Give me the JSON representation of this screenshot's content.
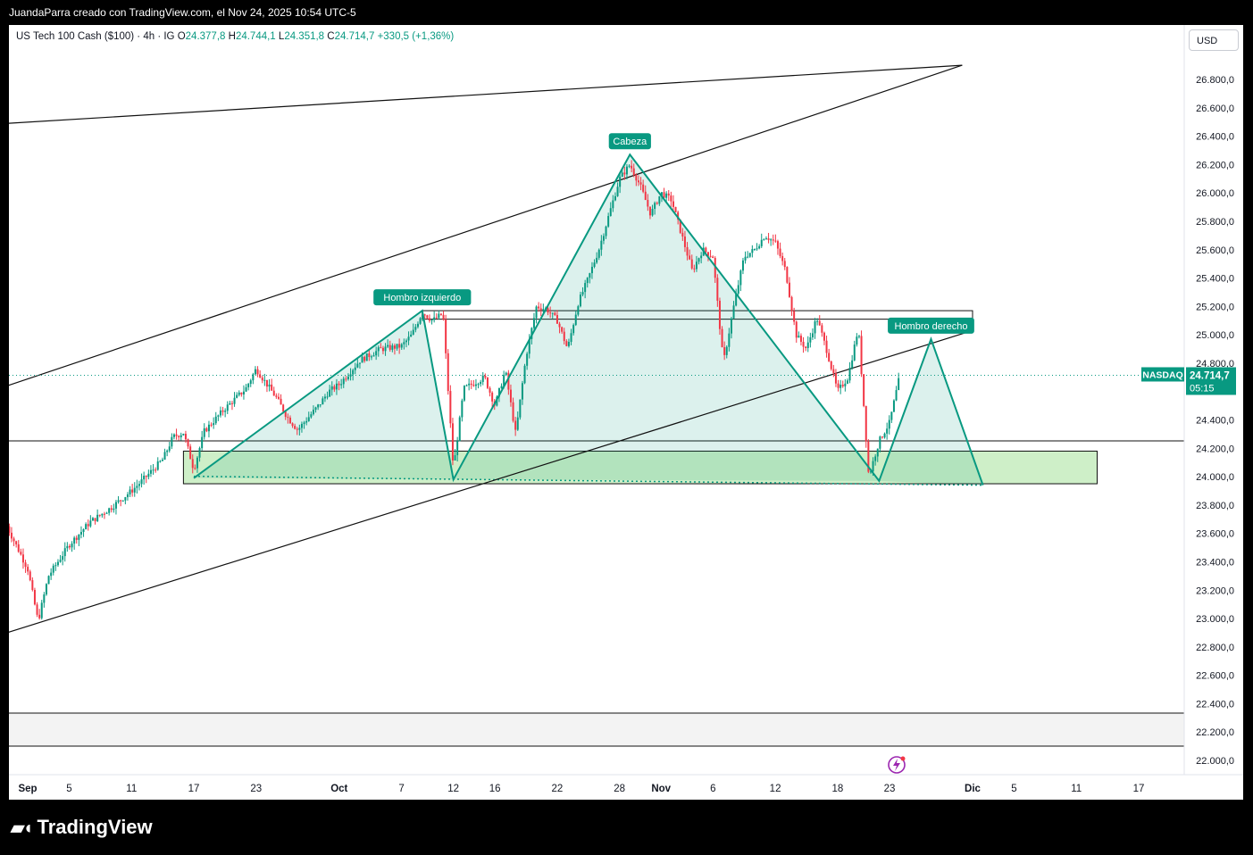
{
  "caption": "JuandaParra creado con TradingView.com, el Nov 24, 2025 10:54 UTC-5",
  "legend": {
    "symbol": "US Tech 100 Cash ($100) · 4h · IG",
    "o_label": "O",
    "o": "24.377,8",
    "h_label": "H",
    "h": "24.744,1",
    "l_label": "L",
    "l": "24.351,8",
    "c_label": "C",
    "c": "24.714,7",
    "change": "+330,5 (+1,36%)"
  },
  "currency": "USD",
  "price_tag": {
    "label": "NASDAQ",
    "value": "24.714,7",
    "countdown": "05:15"
  },
  "logo": "TradingView",
  "colors": {
    "up": "#089981",
    "down": "#f23645",
    "pattern": "#089981",
    "zone": "#b9e6b0",
    "price_tag": "#089981"
  },
  "chart_data": {
    "type": "line",
    "title": "US Tech 100 Cash ($100) · 4h · IG",
    "ylim": [
      21900,
      26900
    ],
    "y_ticks": [
      {
        "v": 22000,
        "label": "22.000,0"
      },
      {
        "v": 22200,
        "label": "22.200,0"
      },
      {
        "v": 22400,
        "label": "22.400,0"
      },
      {
        "v": 22600,
        "label": "22.600,0"
      },
      {
        "v": 22800,
        "label": "22.800,0"
      },
      {
        "v": 23000,
        "label": "23.000,0"
      },
      {
        "v": 23200,
        "label": "23.200,0"
      },
      {
        "v": 23400,
        "label": "23.400,0"
      },
      {
        "v": 23600,
        "label": "23.600,0"
      },
      {
        "v": 23800,
        "label": "23.800,0"
      },
      {
        "v": 24000,
        "label": "24.000,0"
      },
      {
        "v": 24200,
        "label": "24.200,0"
      },
      {
        "v": 24400,
        "label": "24.400,0"
      },
      {
        "v": 24800,
        "label": "24.800,0"
      },
      {
        "v": 25000,
        "label": "25.000,0"
      },
      {
        "v": 25200,
        "label": "25.200,0"
      },
      {
        "v": 25400,
        "label": "25.400,0"
      },
      {
        "v": 25600,
        "label": "25.600,0"
      },
      {
        "v": 25800,
        "label": "25.800,0"
      },
      {
        "v": 26000,
        "label": "26.000,0"
      },
      {
        "v": 26200,
        "label": "26.200,0"
      },
      {
        "v": 26400,
        "label": "26.400,0"
      },
      {
        "v": 26600,
        "label": "26.600,0"
      },
      {
        "v": 26800,
        "label": "26.800,0"
      }
    ],
    "x_ticks": [
      {
        "d": "2025-09-01",
        "label": "Sep",
        "bold": true
      },
      {
        "d": "2025-09-05",
        "label": "5"
      },
      {
        "d": "2025-09-11",
        "label": "11"
      },
      {
        "d": "2025-09-17",
        "label": "17"
      },
      {
        "d": "2025-09-23",
        "label": "23"
      },
      {
        "d": "2025-10-01",
        "label": "Oct",
        "bold": true
      },
      {
        "d": "2025-10-07",
        "label": "7"
      },
      {
        "d": "2025-10-12",
        "label": "12"
      },
      {
        "d": "2025-10-16",
        "label": "16"
      },
      {
        "d": "2025-10-22",
        "label": "22"
      },
      {
        "d": "2025-10-28",
        "label": "28"
      },
      {
        "d": "2025-11-01",
        "label": "Nov",
        "bold": true
      },
      {
        "d": "2025-11-06",
        "label": "6"
      },
      {
        "d": "2025-11-12",
        "label": "12"
      },
      {
        "d": "2025-11-18",
        "label": "18"
      },
      {
        "d": "2025-11-23",
        "label": "23"
      },
      {
        "d": "2025-12-01",
        "label": "Dic",
        "bold": true
      },
      {
        "d": "2025-12-05",
        "label": "5"
      },
      {
        "d": "2025-12-11",
        "label": "11"
      },
      {
        "d": "2025-12-17",
        "label": "17"
      }
    ],
    "price_path": [
      [
        "2025-08-30",
        23650
      ],
      [
        "2025-09-01",
        23350
      ],
      [
        "2025-09-02",
        22980
      ],
      [
        "2025-09-03",
        23300
      ],
      [
        "2025-09-05",
        23520
      ],
      [
        "2025-09-07",
        23680
      ],
      [
        "2025-09-09",
        23780
      ],
      [
        "2025-09-11",
        23900
      ],
      [
        "2025-09-12",
        23970
      ],
      [
        "2025-09-14",
        24120
      ],
      [
        "2025-09-15",
        24280
      ],
      [
        "2025-09-16",
        24310
      ],
      [
        "2025-09-17",
        24050
      ],
      [
        "2025-09-18",
        24320
      ],
      [
        "2025-09-20",
        24480
      ],
      [
        "2025-09-22",
        24620
      ],
      [
        "2025-09-23",
        24760
      ],
      [
        "2025-09-25",
        24550
      ],
      [
        "2025-09-26",
        24420
      ],
      [
        "2025-09-27",
        24330
      ],
      [
        "2025-09-29",
        24500
      ],
      [
        "2025-09-30",
        24600
      ],
      [
        "2025-10-01",
        24650
      ],
      [
        "2025-10-03",
        24820
      ],
      [
        "2025-10-05",
        24900
      ],
      [
        "2025-10-07",
        24920
      ],
      [
        "2025-10-08",
        25000
      ],
      [
        "2025-10-09",
        25160
      ],
      [
        "2025-10-10",
        25100
      ],
      [
        "2025-10-11",
        25150
      ],
      [
        "2025-10-12",
        24050
      ],
      [
        "2025-10-13",
        24620
      ],
      [
        "2025-10-15",
        24700
      ],
      [
        "2025-10-16",
        24500
      ],
      [
        "2025-10-17",
        24750
      ],
      [
        "2025-10-18",
        24300
      ],
      [
        "2025-10-19",
        24850
      ],
      [
        "2025-10-20",
        25200
      ],
      [
        "2025-10-21",
        25180
      ],
      [
        "2025-10-22",
        25100
      ],
      [
        "2025-10-23",
        24900
      ],
      [
        "2025-10-24",
        25220
      ],
      [
        "2025-10-25",
        25400
      ],
      [
        "2025-10-26",
        25600
      ],
      [
        "2025-10-27",
        25850
      ],
      [
        "2025-10-28",
        26100
      ],
      [
        "2025-10-29",
        26200
      ],
      [
        "2025-10-30",
        26050
      ],
      [
        "2025-10-31",
        25850
      ],
      [
        "2025-11-01",
        26000
      ],
      [
        "2025-11-02",
        25950
      ],
      [
        "2025-11-03",
        25700
      ],
      [
        "2025-11-04",
        25450
      ],
      [
        "2025-11-05",
        25600
      ],
      [
        "2025-11-06",
        25550
      ],
      [
        "2025-11-07",
        24800
      ],
      [
        "2025-11-08",
        25200
      ],
      [
        "2025-11-09",
        25550
      ],
      [
        "2025-11-10",
        25600
      ],
      [
        "2025-11-11",
        25700
      ],
      [
        "2025-11-12",
        25650
      ],
      [
        "2025-11-13",
        25450
      ],
      [
        "2025-11-14",
        25000
      ],
      [
        "2025-11-15",
        24900
      ],
      [
        "2025-11-16",
        25120
      ],
      [
        "2025-11-17",
        24880
      ],
      [
        "2025-11-18",
        24600
      ],
      [
        "2025-11-19",
        24700
      ],
      [
        "2025-11-20",
        25050
      ],
      [
        "2025-11-21",
        24000
      ],
      [
        "2025-11-22",
        24250
      ],
      [
        "2025-11-23",
        24380
      ],
      [
        "2025-11-24",
        24714.7
      ]
    ],
    "annotations": [
      {
        "label": "Hombro izquierdo",
        "d": "2025-10-09",
        "v": 25170
      },
      {
        "label": "Cabeza",
        "d": "2025-10-29",
        "v": 26270
      },
      {
        "label": "Hombro derecho",
        "d": "2025-11-27",
        "v": 24970
      }
    ],
    "neckline_zone": {
      "from": "2025-09-16",
      "to": "2025-12-13",
      "top": 24180,
      "bottom": 23950
    },
    "resistance_zone": {
      "from": "2025-10-09",
      "to": "2025-12-01",
      "top": 25170,
      "bottom": 25110
    },
    "pattern_points": [
      [
        "2025-09-17",
        23990
      ],
      [
        "2025-10-09",
        25170
      ],
      [
        "2025-10-12",
        23980
      ],
      [
        "2025-10-29",
        26270
      ],
      [
        "2025-11-22",
        23970
      ],
      [
        "2025-11-27",
        24970
      ],
      [
        "2025-12-02",
        23940
      ]
    ],
    "trendlines": [
      {
        "from": [
          "2025-08-30",
          22900
        ],
        "to": [
          "2025-12-01",
          25030
        ]
      },
      {
        "from": [
          "2025-08-30",
          24640
        ],
        "to": [
          "2025-11-30",
          26900
        ]
      },
      {
        "from": [
          "2025-08-30",
          26490
        ],
        "to": [
          "2025-11-30",
          26900
        ]
      }
    ]
  }
}
